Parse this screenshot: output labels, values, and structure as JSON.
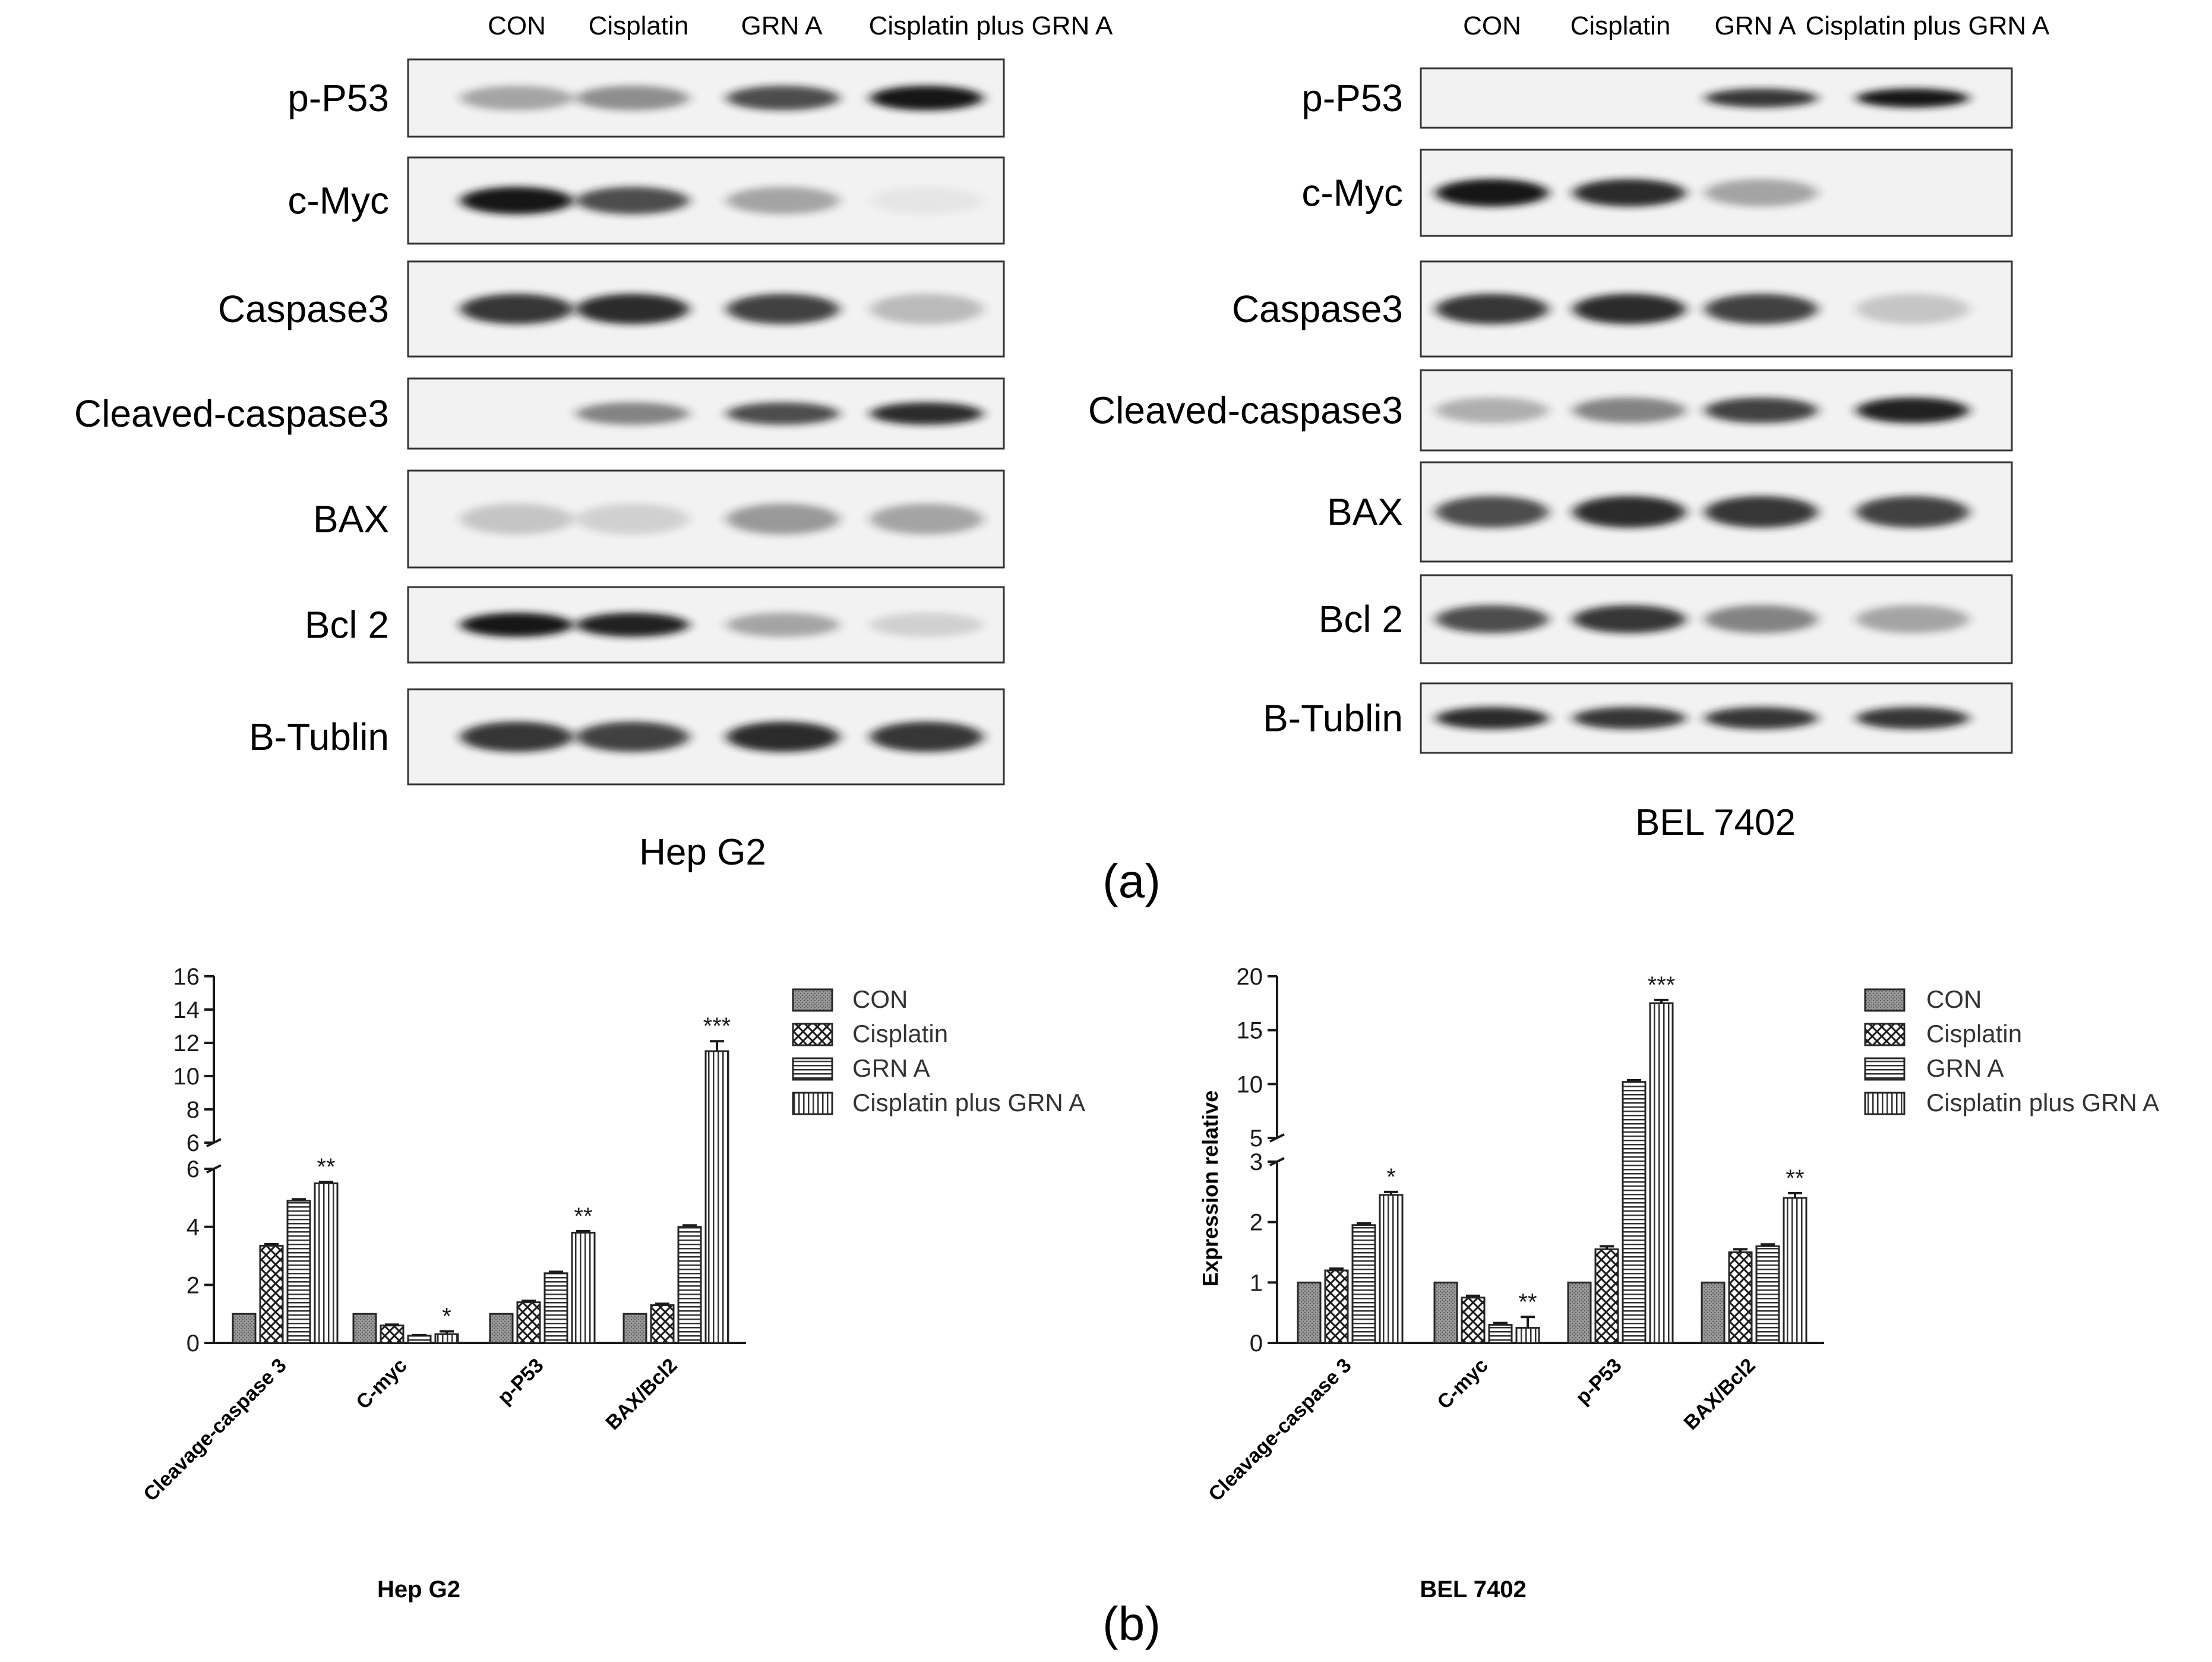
{
  "colors": {
    "band": "#141414",
    "axis": "#1a1a1a",
    "bar_stroke": "#262626",
    "gray_fill": "#9a9a9a"
  },
  "icons": {
    "con": "dense-gray-pattern",
    "cisplatin": "crosshatch-pattern",
    "grn_a": "horizontal-stripe-pattern",
    "combo": "vertical-stripe-pattern"
  },
  "panel_a": {
    "label": "(a)",
    "lanes": [
      "CON",
      "Cisplatin",
      "GRN A",
      "Cisplatin plus GRN A"
    ],
    "blots": [
      {
        "cell_line": "Hep G2",
        "rows": [
          {
            "label": "p-P53",
            "intensity": [
              0.35,
              0.45,
              0.75,
              1.0
            ]
          },
          {
            "label": "c-Myc",
            "intensity": [
              1.0,
              0.75,
              0.35,
              0.05
            ]
          },
          {
            "label": "Caspase3",
            "intensity": [
              0.85,
              0.9,
              0.8,
              0.25
            ]
          },
          {
            "label": "Cleaved-caspase3",
            "intensity": [
              0.0,
              0.5,
              0.75,
              0.9
            ]
          },
          {
            "label": "BAX",
            "intensity": [
              0.2,
              0.15,
              0.4,
              0.35
            ]
          },
          {
            "label": "Bcl 2",
            "intensity": [
              1.0,
              0.95,
              0.35,
              0.15
            ]
          },
          {
            "label": "B-Tublin",
            "intensity": [
              0.85,
              0.8,
              0.9,
              0.85
            ]
          }
        ]
      },
      {
        "cell_line": "BEL 7402",
        "rows": [
          {
            "label": "p-P53",
            "intensity": [
              0.0,
              0.0,
              0.85,
              1.0
            ]
          },
          {
            "label": "c-Myc",
            "intensity": [
              1.0,
              0.9,
              0.35,
              0.0
            ]
          },
          {
            "label": "Caspase3",
            "intensity": [
              0.85,
              0.9,
              0.8,
              0.2
            ]
          },
          {
            "label": "Cleaved-caspase3",
            "intensity": [
              0.3,
              0.5,
              0.8,
              0.95
            ]
          },
          {
            "label": "BAX",
            "intensity": [
              0.75,
              0.9,
              0.85,
              0.8
            ]
          },
          {
            "label": "Bcl 2",
            "intensity": [
              0.75,
              0.85,
              0.5,
              0.35
            ]
          },
          {
            "label": "B-Tublin",
            "intensity": [
              0.9,
              0.85,
              0.85,
              0.85
            ]
          }
        ]
      }
    ]
  },
  "panel_b_label": "(b)",
  "chart_data": [
    {
      "type": "bar",
      "title": "Hep G2",
      "ylabel": "",
      "categories": [
        "Cleavage-caspase 3",
        "C-myc",
        "p-P53",
        "BAX/Bcl2"
      ],
      "series": [
        {
          "name": "CON",
          "values": [
            1.0,
            1.0,
            1.0,
            1.0
          ],
          "errors": [
            0.0,
            0.0,
            0.0,
            0.0
          ]
        },
        {
          "name": "Cisplatin",
          "values": [
            3.35,
            0.6,
            1.4,
            1.3
          ],
          "errors": [
            0.05,
            0.03,
            0.05,
            0.05
          ]
        },
        {
          "name": "GRN A",
          "values": [
            4.9,
            0.25,
            2.4,
            4.0
          ],
          "errors": [
            0.05,
            0.02,
            0.05,
            0.05
          ]
        },
        {
          "name": "Cisplatin plus GRN A",
          "values": [
            5.5,
            0.3,
            3.8,
            11.5
          ],
          "errors": [
            0.05,
            0.1,
            0.05,
            0.6
          ]
        }
      ],
      "significance": [
        "**",
        "*",
        "**",
        "***"
      ],
      "ylim": [
        0,
        16
      ],
      "axis_break": [
        6,
        6
      ],
      "lower_ticks": [
        0,
        2,
        4,
        6
      ],
      "upper_ticks": [
        6,
        8,
        10,
        12,
        14,
        16
      ],
      "legend_position": "top-right",
      "grid": false
    },
    {
      "type": "bar",
      "title": "BEL 7402",
      "ylabel": "Expression relative",
      "categories": [
        "Cleavage-caspase 3",
        "C-myc",
        "p-P53",
        "BAX/Bcl2"
      ],
      "series": [
        {
          "name": "CON",
          "values": [
            1.0,
            1.0,
            1.0,
            1.0
          ],
          "errors": [
            0.0,
            0.0,
            0.0,
            0.0
          ]
        },
        {
          "name": "Cisplatin",
          "values": [
            1.2,
            0.75,
            1.55,
            1.5
          ],
          "errors": [
            0.03,
            0.03,
            0.05,
            0.05
          ]
        },
        {
          "name": "GRN A",
          "values": [
            1.95,
            0.3,
            10.2,
            1.6
          ],
          "errors": [
            0.03,
            0.03,
            0.15,
            0.03
          ]
        },
        {
          "name": "Cisplatin plus GRN A",
          "values": [
            2.45,
            0.25,
            17.5,
            2.4
          ],
          "errors": [
            0.05,
            0.18,
            0.3,
            0.08
          ]
        }
      ],
      "significance": [
        "*",
        "**",
        "***",
        "**"
      ],
      "ylim": [
        0,
        20
      ],
      "axis_break": [
        3,
        5
      ],
      "lower_ticks": [
        0,
        1,
        2,
        3
      ],
      "upper_ticks": [
        5,
        10,
        15,
        20
      ],
      "legend_position": "top-right",
      "grid": false
    }
  ]
}
